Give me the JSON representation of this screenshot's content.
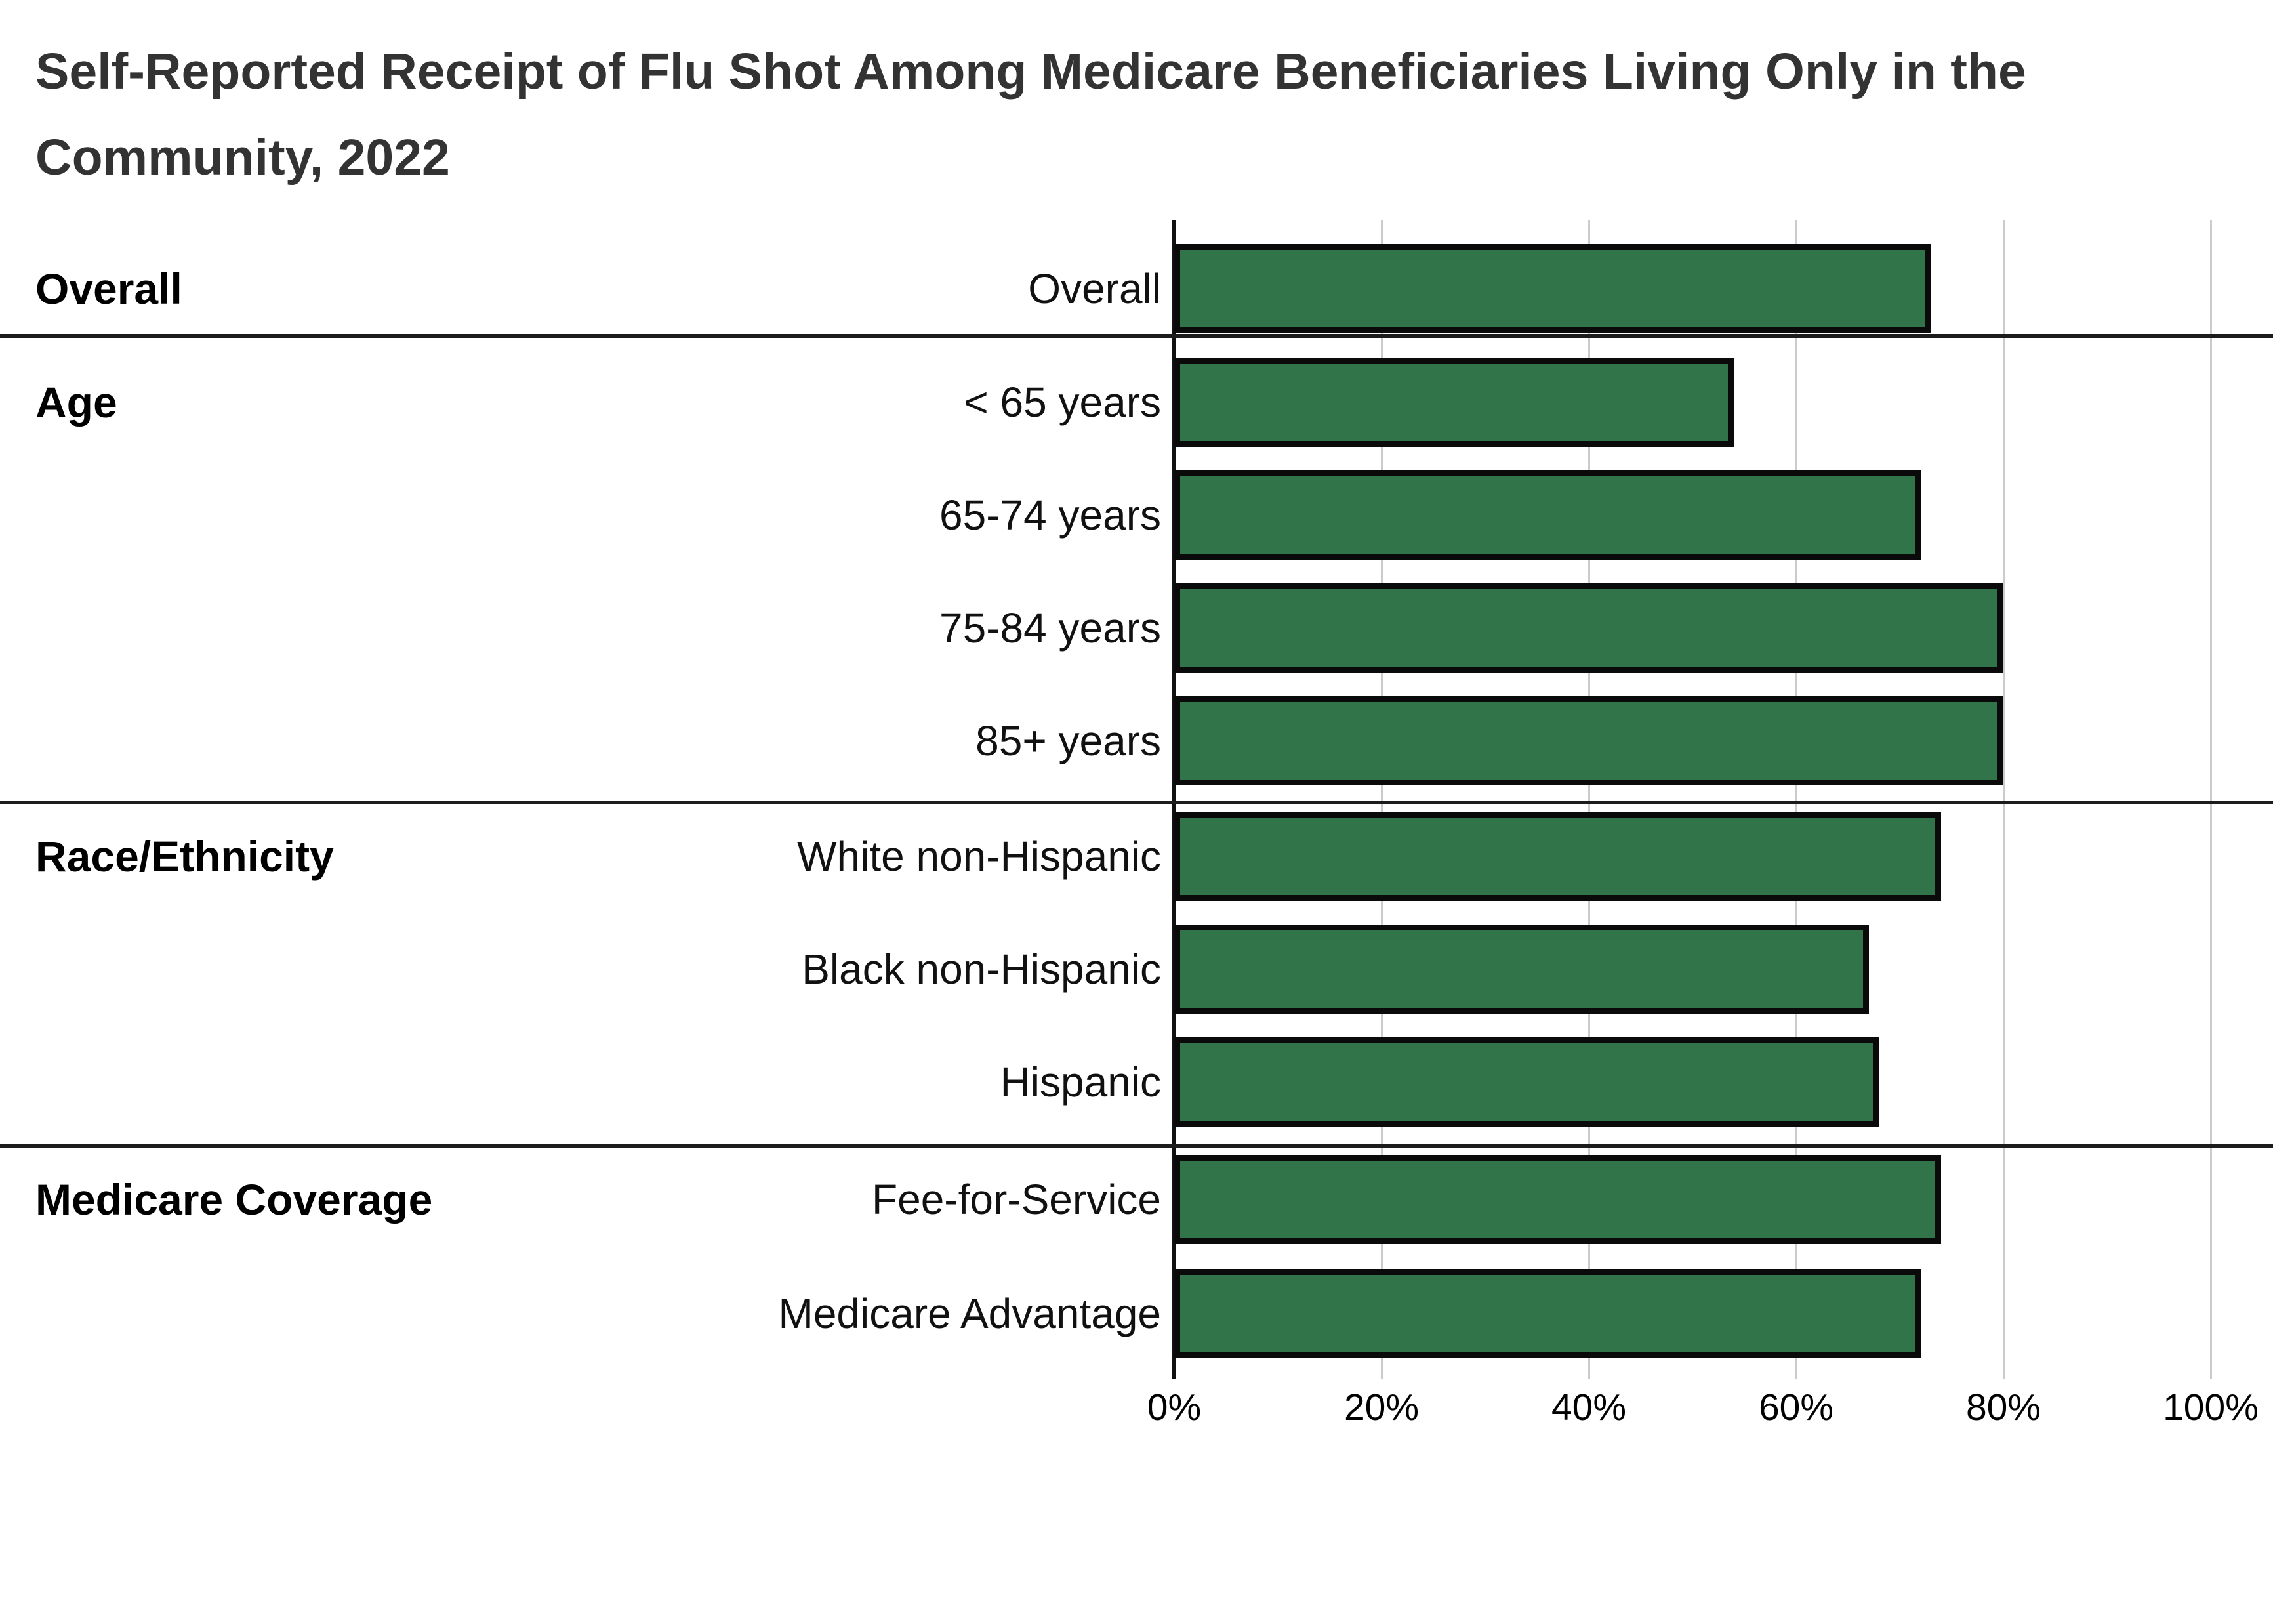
{
  "title": {
    "text": "Self-Reported Receipt of Flu Shot Among Medicare Beneficiaries Living Only in the Community, 2022",
    "lines": [
      "Self-Reported Receipt of Flu Shot Among Medicare Beneficiaries Living Only in the",
      "Community, 2022"
    ],
    "color": "#333333"
  },
  "chart_data": {
    "type": "bar",
    "orientation": "horizontal",
    "title": "Self-Reported Receipt of Flu Shot Among Medicare Beneficiaries Living Only in the Community, 2022",
    "xlabel": "",
    "ylabel": "",
    "value_unit": "%",
    "xlim": [
      0,
      100
    ],
    "x_ticks": [
      0,
      20,
      40,
      60,
      80,
      100
    ],
    "x_tick_labels": [
      "0%",
      "20%",
      "40%",
      "60%",
      "80%",
      "100%"
    ],
    "grid": "vertical gridlines on",
    "legend": "none",
    "categories": [
      "Overall",
      "< 65 years",
      "65-74 years",
      "75-84 years",
      "85+ years",
      "White non-Hispanic",
      "Black non-Hispanic",
      "Hispanic",
      "Fee-for-Service",
      "Medicare Advantage"
    ],
    "values": [
      73,
      54,
      72,
      80,
      80,
      74,
      67,
      68,
      74,
      72
    ],
    "groups": [
      {
        "label": "Overall",
        "rows": [
          {
            "label": "Overall",
            "value": 73
          }
        ]
      },
      {
        "label": "Age",
        "rows": [
          {
            "label": "< 65 years",
            "value": 54
          },
          {
            "label": "65-74 years",
            "value": 72
          },
          {
            "label": "75-84 years",
            "value": 80
          },
          {
            "label": "85+ years",
            "value": 80
          }
        ]
      },
      {
        "label": "Race/Ethnicity",
        "rows": [
          {
            "label": "White non-Hispanic",
            "value": 74
          },
          {
            "label": "Black non-Hispanic",
            "value": 67
          },
          {
            "label": "Hispanic",
            "value": 68
          }
        ]
      },
      {
        "label": "Medicare Coverage",
        "rows": [
          {
            "label": "Fee-for-Service",
            "value": 74
          },
          {
            "label": "Medicare Advantage",
            "value": 72
          }
        ]
      }
    ],
    "colors": {
      "bar_fill": "#327449",
      "bar_border": "#0a0a0a",
      "gridline": "#cbcbcb",
      "zero_axis_line": "#111111",
      "section_divider": "#1c1c1c",
      "row_label_text": "#111111",
      "group_label_text": "#000000",
      "tick_label_text": "#000000"
    }
  }
}
